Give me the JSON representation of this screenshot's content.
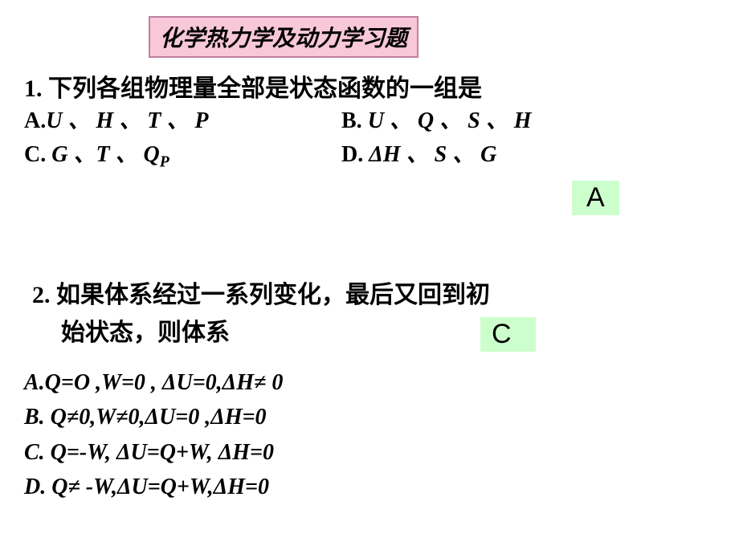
{
  "title": "化学热力学及动力学习题",
  "q1": {
    "stem": "1. 下列各组物理量全部是状态函数的一组是",
    "optA_label": "A.",
    "optA_body": "U 、 H  、 T  、 P",
    "optB_label": "B.",
    "optB_body": " U  、 Q  、 S  、 H",
    "optC_label": "C.",
    "optC_body": " G 、T 、 Q",
    "optC_sub": "P",
    "optD_label": "D.",
    "optD_body": " ΔH  、 S  、 G",
    "answer": "A"
  },
  "q2": {
    "stem_line1": "2. 如果体系经过一系列变化，最后又回到初",
    "stem_line2": "始状态，则体系",
    "optA": "A.Q=O ,W=0 , ΔU=0,ΔH≠ 0",
    "optB": "B. Q≠0,W≠0,ΔU=0 ,ΔH=0",
    "optC": "C. Q=-W, ΔU=Q+W, ΔH=0",
    "optD": "D. Q≠ -W,ΔU=Q+W,ΔH=0",
    "answer": "C"
  },
  "colors": {
    "title_bg": "#f8c8d8",
    "title_border": "#c080a0",
    "answer_bg": "#ccffcc",
    "page_bg": "#ffffff",
    "text": "#000000"
  }
}
